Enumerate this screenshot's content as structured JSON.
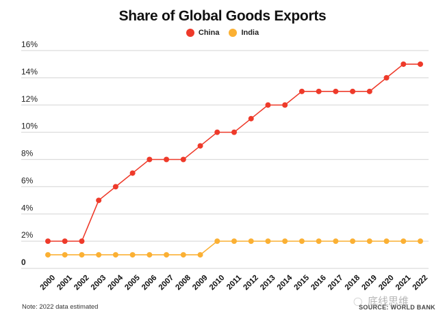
{
  "chart_data": {
    "type": "line",
    "title": "Share of Global Goods Exports",
    "xlabel": "",
    "ylabel": "",
    "x": [
      "2000",
      "2001",
      "2002",
      "2003",
      "2004",
      "2005",
      "2006",
      "2007",
      "2008",
      "2009",
      "2010",
      "2011",
      "2012",
      "2013",
      "2014",
      "2015",
      "2016",
      "2017",
      "2018",
      "2019",
      "2020",
      "2021",
      "2022"
    ],
    "series": [
      {
        "name": "China",
        "color": "#ee3a2a",
        "values": [
          2,
          2,
          2,
          5,
          6,
          7,
          8,
          8,
          8,
          9,
          10,
          10,
          11,
          12,
          12,
          13,
          13,
          13,
          13,
          13,
          14,
          15,
          15
        ]
      },
      {
        "name": "India",
        "color": "#fbb033",
        "values": [
          1,
          1,
          1,
          1,
          1,
          1,
          1,
          1,
          1,
          1,
          2,
          2,
          2,
          2,
          2,
          2,
          2,
          2,
          2,
          2,
          2,
          2,
          2
        ]
      }
    ],
    "ylim": [
      0,
      16
    ],
    "yticks": [
      0,
      2,
      4,
      6,
      8,
      10,
      12,
      14,
      16
    ],
    "ytick_labels": [
      "0",
      "2%",
      "4%",
      "6%",
      "8%",
      "10%",
      "12%",
      "14%",
      "16%"
    ],
    "grid": true,
    "legend_position": "top-center",
    "note": "Note: 2022 data estimated",
    "source": "SOURCE: WORLD BANK"
  },
  "watermark": "底线思维"
}
